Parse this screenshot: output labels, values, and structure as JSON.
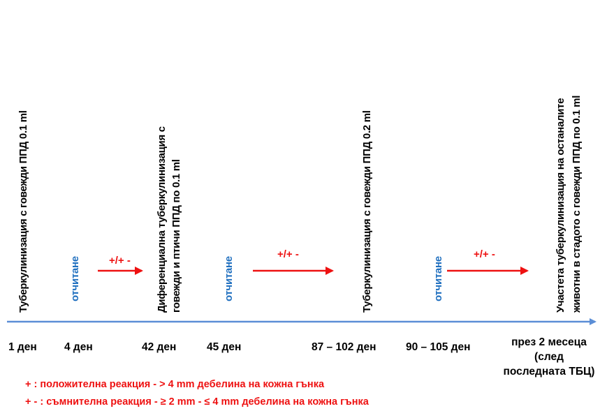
{
  "steps": {
    "s1": "Туберкулинизация с говежди ППД 0.1 ml",
    "s2_line1": "Диференциална туберкулинизация с",
    "s2_line2": "говежди  и  птичи ППД  по 0.1 ml",
    "s3": "Туберкулинизация с говежди ППД 0.2 ml",
    "s4_line1": "Участета туберкулинизация на  останалите",
    "s4_line2": "животни в стадото с говежди ППД по 0.1 ml"
  },
  "readings": {
    "r1": "отчитане",
    "r2": "отчитане",
    "r3": "отчитане"
  },
  "transitions": [
    "+/+ -",
    "+/+ -",
    "+/+ -"
  ],
  "days": {
    "d1": "1 ден",
    "d2": "4 ден",
    "d3": "42 ден",
    "d4": "45 ден",
    "d5": "87 – 102 ден",
    "d6": "90 – 105 ден",
    "d7_line1": "през 2 месеца",
    "d7_line2": "(след",
    "d7_line3": "последната ТБЦ)"
  },
  "legend": {
    "positive": "+ : положителна реакция - > 4 mm дебелина на кожна гънка",
    "doubtful": "+ - : съмнителна реакция - ≥ 2 mm - ≤ 4 mm дебелина на кожна гънка"
  },
  "colors": {
    "axis": "#5b8ed6",
    "arrow": "#ee1111",
    "reading": "#1f6fbf",
    "legend": "#ee1111"
  }
}
